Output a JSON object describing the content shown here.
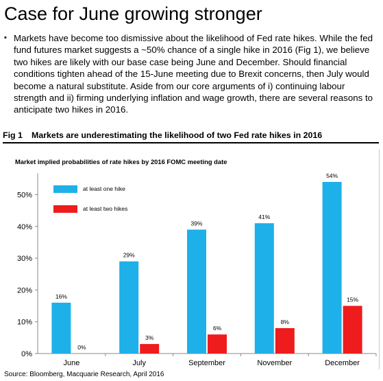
{
  "page": {
    "title": "Case for June growing stronger",
    "bullet_text": "Markets have become too dismissive about the likelihood of Fed rate hikes.  While the fed fund futures market suggests a ~50% chance of a single hike in 2016 (Fig 1), we believe two hikes are likely with our base case being June and December.  Should financial conditions tighten ahead of the 15-June meeting due to Brexit concerns, then July would become a natural substitute.  Aside from our core arguments of i) continuing labour strength and ii) firming underlying inflation and wage growth, there are several reasons to anticipate two hikes in 2016.",
    "fig_label": "Fig 1",
    "fig_title": "Markets are underestimating the likelihood of two Fed rate hikes in 2016",
    "source": "Source: Bloomberg, Macquarie Research, April 2016"
  },
  "chart_data": {
    "type": "bar",
    "title": "Market implied probabilities of rate hikes by  2016 FOMC meeting date",
    "categories": [
      "June",
      "July",
      "September",
      "November",
      "December"
    ],
    "series": [
      {
        "name": "at least one hike",
        "values": [
          16,
          29,
          39,
          41,
          54
        ],
        "labels": [
          "16%",
          "29%",
          "39%",
          "41%",
          "54%"
        ],
        "color": "#1eb0e8"
      },
      {
        "name": "at least two hikes",
        "values": [
          0,
          3,
          6,
          8,
          15
        ],
        "labels": [
          "0%",
          "3%",
          "6%",
          "8%",
          "15%"
        ],
        "color": "#ee1c1c"
      }
    ],
    "yticks": [
      0,
      10,
      20,
      30,
      40,
      50
    ],
    "ytick_labels": [
      "0%",
      "10%",
      "20%",
      "30%",
      "40%",
      "50%"
    ],
    "ylim": [
      0,
      55
    ],
    "grid": false,
    "legend": "top-left"
  }
}
